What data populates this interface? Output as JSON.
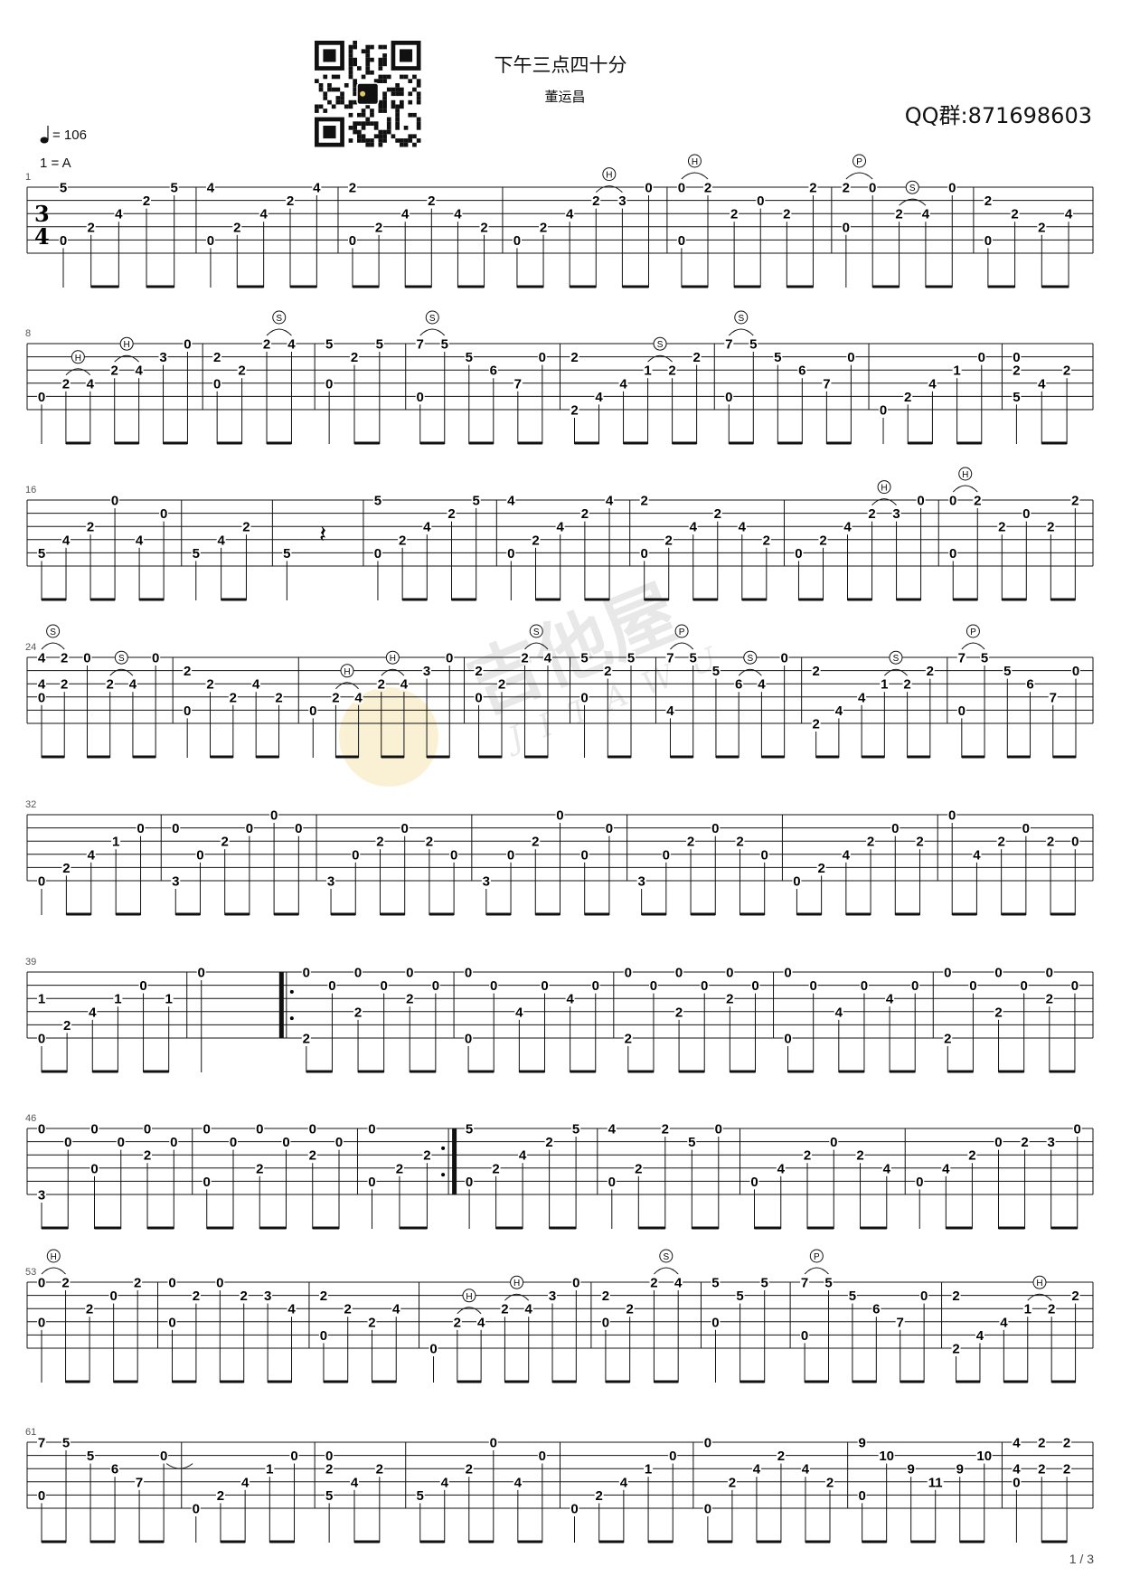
{
  "header": {
    "title": "下午三点四十分",
    "composer": "董运昌",
    "qq_group": "QQ群:871698603",
    "tempo": "= 106",
    "key": "1 = A",
    "time_signature": [
      "3",
      "4"
    ],
    "qr_icon": "qr-code",
    "page_number": "1 / 3"
  },
  "watermark": {
    "brand": "吉他屋",
    "latin": "JITAWU"
  },
  "colors": {
    "ink": "#111111",
    "watermark": "#bfbfbf",
    "watermark_accent": "#f3d98a"
  },
  "systems": [
    {
      "number": "1",
      "measures": [
        {
          "cols": [
            "1:5 5:0",
            "4:2",
            "3:4",
            "2:2",
            "1:5"
          ]
        },
        {
          "cols": [
            "1:4 5:0",
            "4:2",
            "3:4",
            "2:2",
            "1:4"
          ]
        },
        {
          "cols": [
            "1:2 5:0",
            "4:2",
            "3:4",
            "2:2",
            "3:4",
            "4:2"
          ]
        },
        {
          "cols": [
            "5:0",
            "4:2",
            "3:4",
            "H 2:2",
            "2:3",
            "1:0"
          ]
        },
        {
          "cols": [
            "H 1:0 5:0",
            "1:2",
            "3:2",
            "2:0",
            "3:2",
            "1:2"
          ]
        },
        {
          "cols": [
            "P 1:2 4:0",
            "1:0",
            "S 3:2",
            "3:4",
            "1:0"
          ]
        },
        {
          "cols": [
            "2:2 5:0",
            "3:2",
            "4:2",
            "3:4"
          ]
        }
      ]
    },
    {
      "number": "8",
      "measures": [
        {
          "cols": [
            "5:0",
            "H 4:2",
            "4:4",
            "H 3:2",
            "3:4",
            "2:3",
            "1:0"
          ]
        },
        {
          "cols": [
            "2:2 4:0",
            "3:2",
            "S 1:2",
            "1:4"
          ]
        },
        {
          "cols": [
            "1:5 4:0",
            "2:2",
            "1:5"
          ]
        },
        {
          "cols": [
            "S 1:7 5:0",
            "1:5",
            "2:5",
            "3:6",
            "4:7",
            "2:0"
          ]
        },
        {
          "cols": [
            "2:2 6:2",
            "5:4",
            "4:4",
            "S 3:1",
            "3:2",
            "2:2"
          ]
        },
        {
          "cols": [
            "S 1:7 5:0",
            "1:5",
            "2:5",
            "3:6",
            "4:7",
            "2:0"
          ]
        },
        {
          "cols": [
            "6:0",
            "5:2",
            "4:4",
            "3:1",
            "2:0"
          ]
        },
        {
          "cols": [
            "2:0 3:2 5:5",
            "4:4",
            "3:2"
          ]
        }
      ]
    },
    {
      "number": "16",
      "measures": [
        {
          "cols": [
            "5:5",
            "4:4",
            "3:2",
            "1:0",
            "4:4",
            "2:0"
          ]
        },
        {
          "cols": [
            "5:5",
            "4:4",
            "3:2"
          ]
        },
        {
          "cols": [
            "5:5",
            "r"
          ]
        },
        {
          "cols": [
            "1:5 5:0",
            "4:2",
            "3:4",
            "2:2",
            "1:5"
          ]
        },
        {
          "cols": [
            "1:4 5:0",
            "4:2",
            "3:4",
            "2:2",
            "1:4"
          ]
        },
        {
          "cols": [
            "1:2 5:0",
            "4:2",
            "3:4",
            "2:2",
            "3:4",
            "4:2"
          ]
        },
        {
          "cols": [
            "5:0",
            "4:2",
            "3:4",
            "H 2:2",
            "2:3",
            "1:0"
          ]
        },
        {
          "cols": [
            "H 1:0 5:0",
            "1:2",
            "3:2",
            "2:0",
            "3:2",
            "1:2"
          ]
        }
      ]
    },
    {
      "number": "24",
      "measures": [
        {
          "cols": [
            "S 1:4 3:4 4:0",
            "1:2 3:2",
            "1:0",
            "S 3:2",
            "3:4",
            "1:0"
          ]
        },
        {
          "cols": [
            "2:2 5:0",
            "3:2",
            "4:2",
            "3:4",
            "4:2"
          ]
        },
        {
          "cols": [
            "5:0",
            "H 4:2",
            "4:4",
            "H 3:2",
            "3:4",
            "2:3",
            "1:0"
          ]
        },
        {
          "cols": [
            "2:2 4:0",
            "3:2",
            "S 1:2",
            "1:4"
          ]
        },
        {
          "cols": [
            "1:5 4:0",
            "2:2",
            "1:5"
          ]
        },
        {
          "cols": [
            "P 1:7 5:4",
            "1:5",
            "2:5",
            "S 3:6",
            "3:4",
            "1:0"
          ]
        },
        {
          "cols": [
            "2:2 6:2",
            "5:4",
            "4:4",
            "S 3:1",
            "3:2",
            "2:2"
          ]
        },
        {
          "cols": [
            "P 1:7 5:0",
            "1:5",
            "2:5",
            "3:6",
            "4:7",
            "2:0"
          ]
        }
      ]
    },
    {
      "number": "32",
      "measures": [
        {
          "cols": [
            "6:0",
            "5:2",
            "4:4",
            "3:1",
            "2:0"
          ]
        },
        {
          "cols": [
            "2:0 6:3",
            "4:0",
            "3:2",
            "2:0",
            "1:0",
            "2:0"
          ]
        },
        {
          "cols": [
            "6:3",
            "4:0",
            "3:2",
            "2:0",
            "3:2",
            "4:0"
          ]
        },
        {
          "cols": [
            "6:3",
            "4:0",
            "3:2",
            "1:0",
            "4:0",
            "2:0"
          ]
        },
        {
          "cols": [
            "6:3",
            "4:0",
            "3:2",
            "2:0",
            "3:2",
            "4:0"
          ]
        },
        {
          "cols": [
            "6:0",
            "5:2",
            "4:4",
            "3:2",
            "2:0",
            "3:2"
          ]
        },
        {
          "cols": [
            "1:0",
            "4:4",
            "3:2",
            "2:0",
            "3:2",
            "3:0"
          ]
        }
      ]
    },
    {
      "number": "39",
      "measures": [
        {
          "cols": [
            "3:1 6:0",
            "5:2",
            "4:4",
            "3:1",
            "2:0",
            "3:1"
          ]
        },
        {
          "cols": [
            "1:0"
          ]
        },
        {
          "repeat_start": true,
          "cols": [
            "1:0 6:2",
            "2:0",
            "1:0 4:2",
            "2:0",
            "1:0 3:2",
            "2:0"
          ]
        },
        {
          "cols": [
            "1:0 6:0",
            "2:0",
            "4:4",
            "2:0",
            "3:4",
            "2:0"
          ]
        },
        {
          "cols": [
            "1:0 6:2",
            "2:0",
            "1:0 4:2",
            "2:0",
            "1:0 3:2",
            "2:0"
          ]
        },
        {
          "cols": [
            "1:0 6:0",
            "2:0",
            "4:4",
            "2:0",
            "3:4",
            "2:0"
          ]
        },
        {
          "cols": [
            "1:0 6:2",
            "2:0",
            "1:0 4:2",
            "2:0",
            "1:0 3:2",
            "2:0"
          ]
        }
      ]
    },
    {
      "number": "46",
      "measures": [
        {
          "cols": [
            "1:0 6:3",
            "2:0",
            "1:0 4:0",
            "2:0",
            "1:0 3:2",
            "2:0"
          ]
        },
        {
          "cols": [
            "1:0 5:0",
            "2:0",
            "1:0 4:2",
            "2:0",
            "1:0 3:2",
            "2:0"
          ]
        },
        {
          "repeat_end": true,
          "cols": [
            "1:0 5:0",
            "4:2",
            "3:2"
          ]
        },
        {
          "cols": [
            "1:5 5:0",
            "4:2",
            "3:4",
            "2:2",
            "1:5"
          ]
        },
        {
          "cols": [
            "1:4 5:0",
            "4:2",
            "1:2",
            "2:5",
            "1:0"
          ]
        },
        {
          "cols": [
            "5:0",
            "4:4",
            "3:2",
            "2:0",
            "3:2",
            "4:4"
          ]
        },
        {
          "cols": [
            "5:0",
            "4:4",
            "3:2",
            "2:0",
            "2:2",
            "2:3",
            "1:0"
          ]
        }
      ]
    },
    {
      "number": "53",
      "measures": [
        {
          "cols": [
            "H 1:0 4:0",
            "1:2",
            "3:2",
            "2:0",
            "1:2"
          ]
        },
        {
          "cols": [
            "1:0 4:0",
            "2:2",
            "1:0",
            "2:2",
            "2:3",
            "3:4"
          ]
        },
        {
          "cols": [
            "2:2 5:0",
            "3:2",
            "4:2",
            "3:4"
          ]
        },
        {
          "cols": [
            "6:0",
            "H 4:2",
            "4:4",
            "H 3:2",
            "3:4",
            "2:3",
            "1:0"
          ]
        },
        {
          "cols": [
            "2:2 4:0",
            "3:2",
            "S 1:2",
            "1:4"
          ]
        },
        {
          "cols": [
            "1:5 4:0",
            "2:5",
            "1:5"
          ]
        },
        {
          "cols": [
            "P 1:7 5:0",
            "1:5",
            "2:5",
            "3:6",
            "4:7",
            "2:0"
          ]
        },
        {
          "cols": [
            "2:2 6:2",
            "5:4",
            "4:4",
            "H 3:1",
            "3:2",
            "2:2"
          ]
        }
      ]
    },
    {
      "number": "61",
      "measures": [
        {
          "cols": [
            "1:7 5:0",
            "1:5",
            "2:5",
            "3:6",
            "4:7",
            "2:0 ~"
          ]
        },
        {
          "cols": [
            "6:0",
            "5:2",
            "4:4",
            "3:1",
            "2:0"
          ]
        },
        {
          "cols": [
            "2:0 3:2 5:5",
            "4:4",
            "3:2"
          ]
        },
        {
          "cols": [
            "5:5",
            "4:4",
            "3:2",
            "1:0",
            "4:4",
            "2:0"
          ]
        },
        {
          "cols": [
            "6:0",
            "5:2",
            "4:4",
            "3:1",
            "2:0"
          ]
        },
        {
          "cols": [
            "1:0 6:0",
            "4:2",
            "3:4",
            "2:2",
            "3:4",
            "4:2"
          ]
        },
        {
          "cols": [
            "1:9 5:0",
            "2:10",
            "3:9",
            "4:11",
            "3:9",
            "2:10"
          ]
        },
        {
          "cols": [
            "1:4 3:4 4:0",
            "1:2 3:2",
            "1:2 3:2"
          ]
        }
      ]
    }
  ]
}
